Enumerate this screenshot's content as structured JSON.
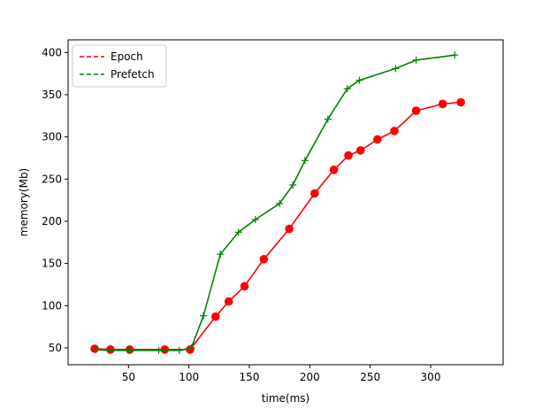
{
  "chart_data": {
    "type": "line",
    "xlabel": "time(ms)",
    "ylabel": "memory(Mb)",
    "xlim": [
      0,
      360
    ],
    "ylim": [
      30,
      415
    ],
    "x_ticks": [
      50,
      100,
      150,
      200,
      250,
      300
    ],
    "y_ticks": [
      50,
      100,
      150,
      200,
      250,
      300,
      350,
      400
    ],
    "grid": false,
    "legend_position": "top-left",
    "series": [
      {
        "name": "Epoch",
        "color": "#ff0000",
        "legend_line_style": "dashed",
        "marker": "circle",
        "x": [
          22,
          35,
          51,
          80,
          101,
          122,
          133,
          146,
          162,
          183,
          204,
          220,
          232,
          242,
          256,
          270,
          288,
          310,
          325
        ],
        "y": [
          49,
          48,
          48,
          48,
          48,
          87,
          105,
          123,
          155,
          191,
          233,
          261,
          278,
          284,
          297,
          307,
          331,
          339,
          341
        ]
      },
      {
        "name": "Prefetch",
        "color": "#008000",
        "legend_line_style": "dashed",
        "marker": "plus",
        "x": [
          23,
          34,
          50,
          75,
          92,
          102,
          112,
          126,
          141,
          155,
          175,
          186,
          196,
          215,
          231,
          241,
          271,
          288,
          320
        ],
        "y": [
          48,
          47,
          47,
          47,
          47,
          50,
          88,
          161,
          187,
          202,
          221,
          243,
          272,
          321,
          357,
          367,
          381,
          391,
          397
        ]
      }
    ]
  }
}
